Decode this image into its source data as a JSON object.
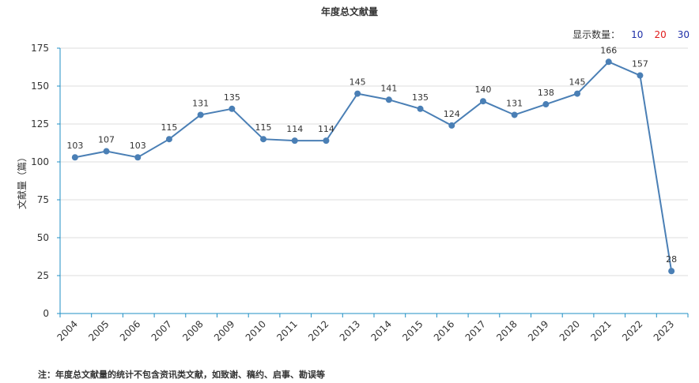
{
  "chart_data": {
    "type": "line",
    "title": "年度总文献量",
    "xlabel": "",
    "ylabel": "文献量（篇）",
    "x": [
      "2004",
      "2005",
      "2006",
      "2007",
      "2008",
      "2009",
      "2010",
      "2011",
      "2012",
      "2013",
      "2014",
      "2015",
      "2016",
      "2017",
      "2018",
      "2019",
      "2020",
      "2021",
      "2022",
      "2023"
    ],
    "series": [
      {
        "values": [
          103,
          107,
          103,
          115,
          131,
          135,
          115,
          114,
          114,
          145,
          141,
          135,
          124,
          140,
          131,
          138,
          145,
          166,
          157,
          28
        ]
      }
    ],
    "ylim": [
      0,
      175
    ],
    "yticks": [
      0,
      25,
      50,
      75,
      100,
      125,
      150,
      175
    ],
    "grid": true,
    "line_color": "#4a7fb5",
    "axis_color": "#1f8fc4"
  },
  "display_count": {
    "label": "显示数量：",
    "options": [
      {
        "text": "10",
        "color": "#1e2fa8"
      },
      {
        "text": "20",
        "color": "#e01b1b"
      },
      {
        "text": "30",
        "color": "#1e2fa8"
      }
    ]
  },
  "footnote": "注：年度总文献量的统计不包含资讯类文献，如致谢、稿约、启事、勘误等"
}
